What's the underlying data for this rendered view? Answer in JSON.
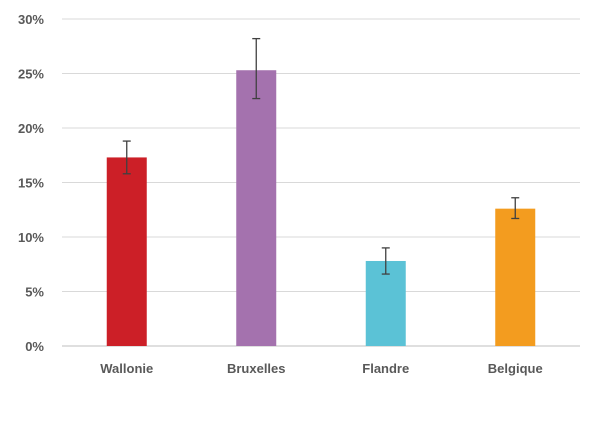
{
  "chart_data": {
    "type": "bar",
    "title": "",
    "xlabel": "",
    "ylabel": "",
    "categories": [
      "Wallonie",
      "Bruxelles",
      "Flandre",
      "Belgique"
    ],
    "values": [
      17.3,
      25.3,
      7.8,
      12.6
    ],
    "error_low": [
      15.8,
      22.7,
      6.6,
      11.7
    ],
    "error_high": [
      18.8,
      28.2,
      9.0,
      13.6
    ],
    "colors": [
      "#cc1f27",
      "#a472ae",
      "#5bc2d6",
      "#f39c1f"
    ],
    "ylim": [
      0,
      30
    ],
    "yticks": [
      0,
      5,
      10,
      15,
      20,
      25,
      30
    ],
    "ytick_labels": [
      "0%",
      "5%",
      "10%",
      "15%",
      "20%",
      "25%",
      "30%"
    ],
    "grid": true,
    "legend": "none"
  }
}
